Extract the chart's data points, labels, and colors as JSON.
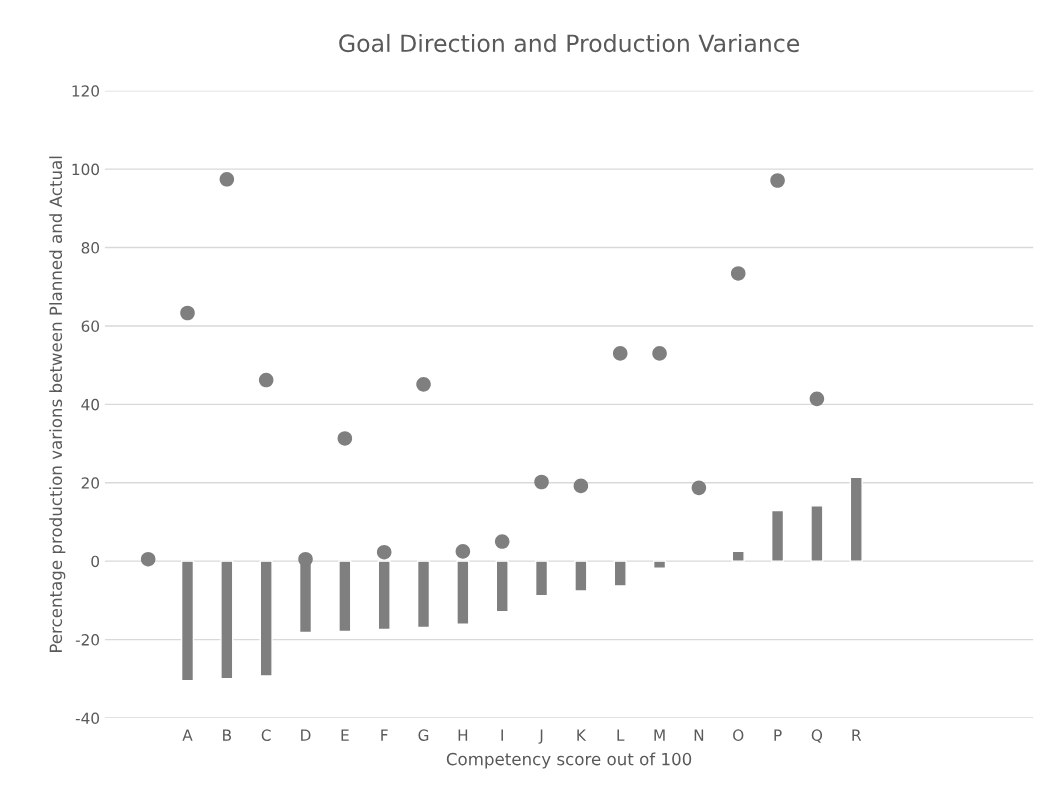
{
  "chart_data": {
    "type": "bar",
    "title": "Goal Direction and Production Variance",
    "xlabel": "Competency score out of 100",
    "ylabel": "Percentage production varions between Planned and Actual",
    "categories": [
      null,
      "A",
      "B",
      "C",
      "D",
      "E",
      "F",
      "G",
      "H",
      "I",
      "J",
      "K",
      "L",
      "M",
      "N",
      "O",
      "P",
      "Q",
      "R"
    ],
    "series": [
      {
        "color": "#7f7f7f",
        "values": [
          null,
          -30.5,
          -30,
          -29.3,
          -18.2,
          -17.9,
          -17.4,
          -16.9,
          -16.1,
          -12.9,
          -8.8,
          -7.6,
          -6.3,
          -1.8,
          null,
          2.5,
          12.9,
          14.1,
          21.4
        ]
      },
      {
        "type": "scatter",
        "color": "#7f7f7f",
        "marker": "circle",
        "values": [
          0.5,
          63.3,
          97.4,
          46.2,
          0.5,
          31.3,
          2.3,
          45.1,
          2.5,
          5,
          20.2,
          19.2,
          53,
          53,
          18.7,
          73.4,
          97.1,
          41.4,
          null
        ]
      }
    ],
    "ylim": [
      -40,
      120
    ],
    "yticks": [
      -40,
      -20,
      0,
      20,
      40,
      60,
      80,
      100,
      120
    ],
    "grid": "y",
    "legend": false
  }
}
